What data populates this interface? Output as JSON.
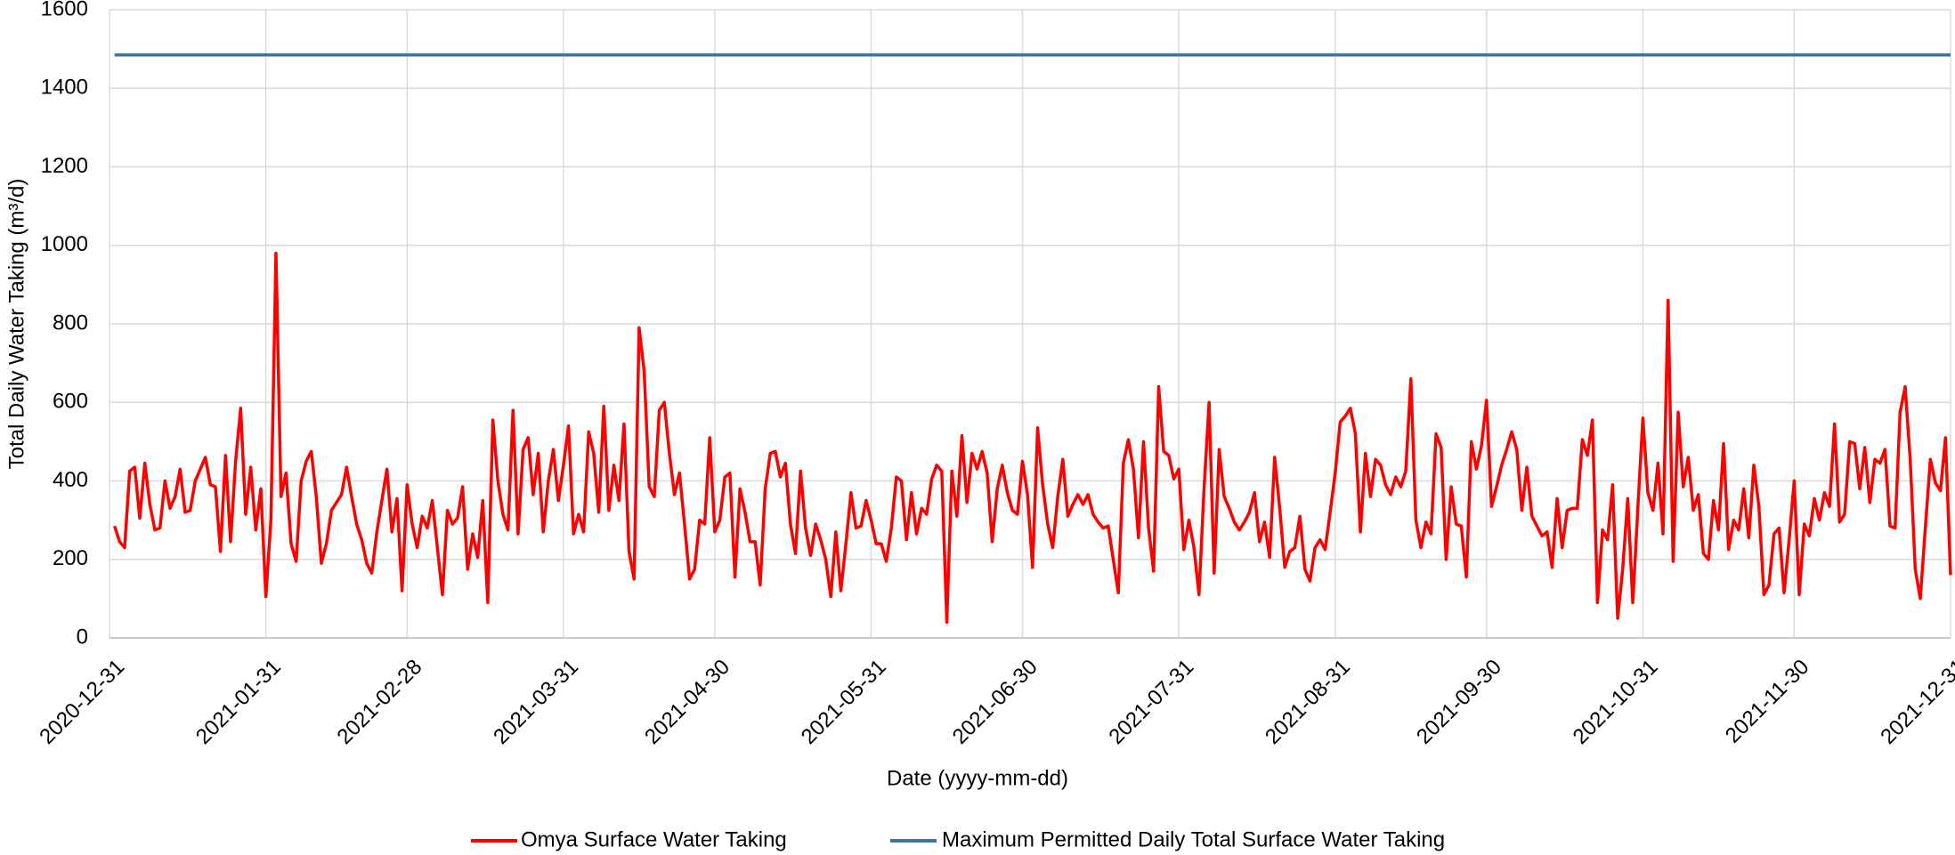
{
  "chart_data": {
    "type": "line",
    "x_label": "Date (yyyy-mm-dd)",
    "y_label": "Total Daily Water Taking (m³/d)",
    "xlim": [
      "2020-12-31",
      "2021-12-31"
    ],
    "xticks": [
      "2020-12-31",
      "2021-01-31",
      "2021-02-28",
      "2021-03-31",
      "2021-04-30",
      "2021-05-31",
      "2021-06-30",
      "2021-07-31",
      "2021-08-31",
      "2021-09-30",
      "2021-10-31",
      "2021-11-30",
      "2021-12-31"
    ],
    "ylim": [
      0,
      1600
    ],
    "yticks": [
      0,
      200,
      400,
      600,
      800,
      1000,
      1200,
      1400,
      1600
    ],
    "grid": true,
    "legend": "bottom",
    "series": [
      {
        "name": "Omya Surface Water Taking",
        "color": "#ff0000",
        "x": [
          "2021-01-01",
          "2021-01-02",
          "2021-01-03",
          "2021-01-04",
          "2021-01-05",
          "2021-01-06",
          "2021-01-07",
          "2021-01-08",
          "2021-01-09",
          "2021-01-10",
          "2021-01-11",
          "2021-01-12",
          "2021-01-13",
          "2021-01-14",
          "2021-01-15",
          "2021-01-16",
          "2021-01-17",
          "2021-01-18",
          "2021-01-19",
          "2021-01-20",
          "2021-01-21",
          "2021-01-22",
          "2021-01-23",
          "2021-01-24",
          "2021-01-25",
          "2021-01-26",
          "2021-01-27",
          "2021-01-28",
          "2021-01-29",
          "2021-01-30",
          "2021-01-31",
          "2021-02-01",
          "2021-02-02",
          "2021-02-03",
          "2021-02-04",
          "2021-02-05",
          "2021-02-06",
          "2021-02-07",
          "2021-02-08",
          "2021-02-09",
          "2021-02-10",
          "2021-02-11",
          "2021-02-12",
          "2021-02-13",
          "2021-02-14",
          "2021-02-15",
          "2021-02-16",
          "2021-02-17",
          "2021-02-18",
          "2021-02-19",
          "2021-02-20",
          "2021-02-21",
          "2021-02-22",
          "2021-02-23",
          "2021-02-24",
          "2021-02-25",
          "2021-02-26",
          "2021-02-27",
          "2021-02-28",
          "2021-03-01",
          "2021-03-02",
          "2021-03-03",
          "2021-03-04",
          "2021-03-05",
          "2021-03-06",
          "2021-03-07",
          "2021-03-08",
          "2021-03-09",
          "2021-03-10",
          "2021-03-11",
          "2021-03-12",
          "2021-03-13",
          "2021-03-14",
          "2021-03-15",
          "2021-03-16",
          "2021-03-17",
          "2021-03-18",
          "2021-03-19",
          "2021-03-20",
          "2021-03-21",
          "2021-03-22",
          "2021-03-23",
          "2021-03-24",
          "2021-03-25",
          "2021-03-26",
          "2021-03-27",
          "2021-03-28",
          "2021-03-29",
          "2021-03-30",
          "2021-03-31",
          "2021-04-01",
          "2021-04-02",
          "2021-04-03",
          "2021-04-04",
          "2021-04-05",
          "2021-04-06",
          "2021-04-07",
          "2021-04-08",
          "2021-04-09",
          "2021-04-10",
          "2021-04-11",
          "2021-04-12",
          "2021-04-13",
          "2021-04-14",
          "2021-04-15",
          "2021-04-16",
          "2021-04-17",
          "2021-04-18",
          "2021-04-19",
          "2021-04-20",
          "2021-04-21",
          "2021-04-22",
          "2021-04-23",
          "2021-04-24",
          "2021-04-25",
          "2021-04-26",
          "2021-04-27",
          "2021-04-28",
          "2021-04-29",
          "2021-04-30",
          "2021-05-01",
          "2021-05-02",
          "2021-05-03",
          "2021-05-04",
          "2021-05-05",
          "2021-05-06",
          "2021-05-07",
          "2021-05-08",
          "2021-05-09",
          "2021-05-10",
          "2021-05-11",
          "2021-05-12",
          "2021-05-13",
          "2021-05-14",
          "2021-05-15",
          "2021-05-16",
          "2021-05-17",
          "2021-05-18",
          "2021-05-19",
          "2021-05-20",
          "2021-05-21",
          "2021-05-22",
          "2021-05-23",
          "2021-05-24",
          "2021-05-25",
          "2021-05-26",
          "2021-05-27",
          "2021-05-28",
          "2021-05-29",
          "2021-05-30",
          "2021-05-31",
          "2021-06-01",
          "2021-06-02",
          "2021-06-03",
          "2021-06-04",
          "2021-06-05",
          "2021-06-06",
          "2021-06-07",
          "2021-06-08",
          "2021-06-09",
          "2021-06-10",
          "2021-06-11",
          "2021-06-12",
          "2021-06-13",
          "2021-06-14",
          "2021-06-15",
          "2021-06-16",
          "2021-06-17",
          "2021-06-18",
          "2021-06-19",
          "2021-06-20",
          "2021-06-21",
          "2021-06-22",
          "2021-06-23",
          "2021-06-24",
          "2021-06-25",
          "2021-06-26",
          "2021-06-27",
          "2021-06-28",
          "2021-06-29",
          "2021-06-30",
          "2021-07-01",
          "2021-07-02",
          "2021-07-03",
          "2021-07-04",
          "2021-07-05",
          "2021-07-06",
          "2021-07-07",
          "2021-07-08",
          "2021-07-09",
          "2021-07-10",
          "2021-07-11",
          "2021-07-12",
          "2021-07-13",
          "2021-07-14",
          "2021-07-15",
          "2021-07-16",
          "2021-07-17",
          "2021-07-18",
          "2021-07-19",
          "2021-07-20",
          "2021-07-21",
          "2021-07-22",
          "2021-07-23",
          "2021-07-24",
          "2021-07-25",
          "2021-07-26",
          "2021-07-27",
          "2021-07-28",
          "2021-07-29",
          "2021-07-30",
          "2021-07-31",
          "2021-08-01",
          "2021-08-02",
          "2021-08-03",
          "2021-08-04",
          "2021-08-05",
          "2021-08-06",
          "2021-08-07",
          "2021-08-08",
          "2021-08-09",
          "2021-08-10",
          "2021-08-11",
          "2021-08-12",
          "2021-08-13",
          "2021-08-14",
          "2021-08-15",
          "2021-08-16",
          "2021-08-17",
          "2021-08-18",
          "2021-08-19",
          "2021-08-20",
          "2021-08-21",
          "2021-08-22",
          "2021-08-23",
          "2021-08-24",
          "2021-08-25",
          "2021-08-26",
          "2021-08-27",
          "2021-08-28",
          "2021-08-29",
          "2021-08-30",
          "2021-08-31",
          "2021-09-01",
          "2021-09-02",
          "2021-09-03",
          "2021-09-04",
          "2021-09-05",
          "2021-09-06",
          "2021-09-07",
          "2021-09-08",
          "2021-09-09",
          "2021-09-10",
          "2021-09-11",
          "2021-09-12",
          "2021-09-13",
          "2021-09-14",
          "2021-09-15",
          "2021-09-16",
          "2021-09-17",
          "2021-09-18",
          "2021-09-19",
          "2021-09-20",
          "2021-09-21",
          "2021-09-22",
          "2021-09-23",
          "2021-09-24",
          "2021-09-25",
          "2021-09-26",
          "2021-09-27",
          "2021-09-28",
          "2021-09-29",
          "2021-09-30",
          "2021-10-01",
          "2021-10-02",
          "2021-10-03",
          "2021-10-04",
          "2021-10-05",
          "2021-10-06",
          "2021-10-07",
          "2021-10-08",
          "2021-10-09",
          "2021-10-10",
          "2021-10-11",
          "2021-10-12",
          "2021-10-13",
          "2021-10-14",
          "2021-10-15",
          "2021-10-16",
          "2021-10-17",
          "2021-10-18",
          "2021-10-19",
          "2021-10-20",
          "2021-10-21",
          "2021-10-22",
          "2021-10-23",
          "2021-10-24",
          "2021-10-25",
          "2021-10-26",
          "2021-10-27",
          "2021-10-28",
          "2021-10-29",
          "2021-10-30",
          "2021-10-31",
          "2021-11-01",
          "2021-11-02",
          "2021-11-03",
          "2021-11-04",
          "2021-11-05",
          "2021-11-06",
          "2021-11-07",
          "2021-11-08",
          "2021-11-09",
          "2021-11-10",
          "2021-11-11",
          "2021-11-12",
          "2021-11-13",
          "2021-11-14",
          "2021-11-15",
          "2021-11-16",
          "2021-11-17",
          "2021-11-18",
          "2021-11-19",
          "2021-11-20",
          "2021-11-21",
          "2021-11-22",
          "2021-11-23",
          "2021-11-24",
          "2021-11-25",
          "2021-11-26",
          "2021-11-27",
          "2021-11-28",
          "2021-11-29",
          "2021-11-30",
          "2021-12-01",
          "2021-12-02",
          "2021-12-03",
          "2021-12-04",
          "2021-12-05",
          "2021-12-06",
          "2021-12-07",
          "2021-12-08",
          "2021-12-09",
          "2021-12-10",
          "2021-12-11",
          "2021-12-12",
          "2021-12-13",
          "2021-12-14",
          "2021-12-15",
          "2021-12-16",
          "2021-12-17",
          "2021-12-18",
          "2021-12-19",
          "2021-12-20",
          "2021-12-21",
          "2021-12-22",
          "2021-12-23",
          "2021-12-24",
          "2021-12-25",
          "2021-12-26",
          "2021-12-27",
          "2021-12-28",
          "2021-12-29",
          "2021-12-30",
          "2021-12-31"
        ],
        "values": [
          285,
          245,
          230,
          425,
          435,
          305,
          445,
          340,
          275,
          280,
          400,
          330,
          360,
          430,
          320,
          325,
          400,
          430,
          460,
          390,
          385,
          220,
          465,
          245,
          450,
          585,
          315,
          435,
          275,
          380,
          105,
          300,
          980,
          360,
          420,
          240,
          195,
          400,
          450,
          475,
          360,
          190,
          240,
          325,
          345,
          365,
          435,
          360,
          290,
          250,
          190,
          165,
          270,
          350,
          430,
          270,
          355,
          120,
          390,
          290,
          230,
          310,
          280,
          350,
          230,
          110,
          325,
          290,
          305,
          385,
          175,
          265,
          205,
          350,
          90,
          555,
          400,
          315,
          275,
          580,
          265,
          480,
          510,
          365,
          470,
          270,
          400,
          480,
          350,
          440,
          540,
          265,
          315,
          270,
          525,
          470,
          320,
          590,
          325,
          440,
          350,
          545,
          220,
          150,
          790,
          680,
          385,
          360,
          580,
          600,
          470,
          365,
          420,
          290,
          150,
          175,
          300,
          290,
          510,
          270,
          300,
          410,
          420,
          155,
          380,
          320,
          245,
          245,
          135,
          380,
          470,
          475,
          410,
          445,
          290,
          215,
          425,
          280,
          210,
          290,
          250,
          200,
          105,
          270,
          120,
          240,
          370,
          280,
          285,
          350,
          300,
          240,
          240,
          195,
          280,
          410,
          400,
          250,
          370,
          265,
          330,
          315,
          405,
          440,
          425,
          40,
          425,
          310,
          515,
          345,
          470,
          430,
          475,
          420,
          245,
          380,
          440,
          370,
          325,
          315,
          450,
          365,
          180,
          535,
          390,
          290,
          230,
          360,
          455,
          310,
          340,
          365,
          340,
          365,
          315,
          295,
          280,
          285,
          200,
          115,
          445,
          505,
          430,
          255,
          500,
          280,
          170,
          640,
          475,
          465,
          405,
          430,
          225,
          300,
          230,
          110,
          380,
          600,
          165,
          480,
          360,
          330,
          295,
          275,
          295,
          320,
          370,
          245,
          295,
          205,
          460,
          330,
          180,
          220,
          230,
          310,
          175,
          145,
          230,
          250,
          225,
          320,
          420,
          550,
          565,
          585,
          520,
          270,
          470,
          360,
          455,
          440,
          390,
          365,
          410,
          385,
          425,
          660,
          300,
          230,
          295,
          265,
          520,
          485,
          200,
          385,
          290,
          285,
          155,
          500,
          430,
          490,
          605,
          335,
          385,
          440,
          480,
          525,
          480,
          325,
          435,
          310,
          285,
          260,
          270,
          180,
          355,
          230,
          325,
          330,
          330,
          505,
          465,
          555,
          90,
          275,
          250,
          390,
          50,
          175,
          355,
          90,
          330,
          560,
          370,
          325,
          445,
          265,
          860,
          195,
          575,
          385,
          460,
          325,
          365,
          215,
          200,
          350,
          275,
          495,
          225,
          300,
          275,
          380,
          255,
          440,
          335,
          110,
          135,
          265,
          280,
          115,
          250,
          400,
          110,
          290,
          260,
          355,
          300,
          370,
          335,
          545,
          295,
          315,
          500,
          495,
          380,
          485,
          345,
          455,
          445,
          480,
          285,
          280,
          575,
          640,
          455,
          175,
          100,
          280,
          455,
          395,
          375,
          510,
          160
        ]
      },
      {
        "name": "Maximum Permitted Daily Total Surface Water Taking",
        "color": "#41729a",
        "x": [
          "2021-01-01",
          "2021-12-31"
        ],
        "values": [
          1485,
          1485
        ]
      }
    ]
  }
}
